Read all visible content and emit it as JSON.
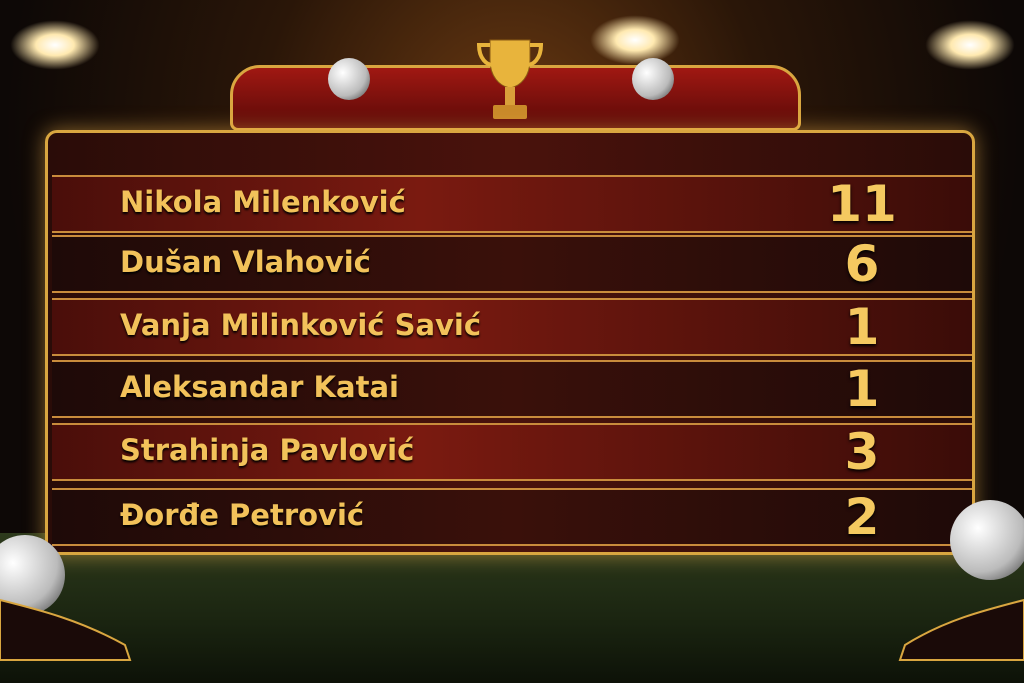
{
  "rows": [
    {
      "name": "Nikola Milenković",
      "value": "11"
    },
    {
      "name": "Dušan Vlahović",
      "value": "6"
    },
    {
      "name": "Vanja Milinković Savić",
      "value": "1"
    },
    {
      "name": "Aleksandar Katai",
      "value": "1"
    },
    {
      "name": "Strahinja Pavlović",
      "value": "3"
    },
    {
      "name": "Đorđe Petrović",
      "value": "2"
    }
  ],
  "colors": {
    "gold": "#f2c25a",
    "red": "#7a1a10",
    "dark": "#1e0a08"
  },
  "icons": [
    "trophy-icon",
    "football-icon",
    "boot-icon",
    "stadium-light-icon"
  ]
}
